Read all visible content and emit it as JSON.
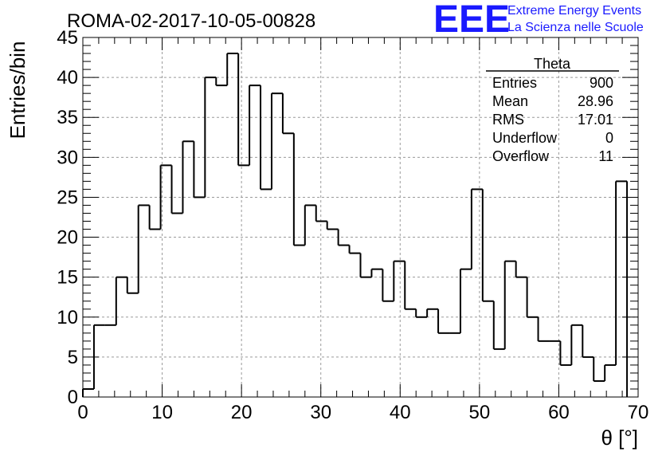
{
  "chart_data": {
    "type": "bar",
    "title": "ROMA-02-2017-10-05-00828",
    "xlabel": "θ [°]",
    "ylabel": "Entries/bin",
    "xlim": [
      0,
      70
    ],
    "ylim": [
      0,
      45
    ],
    "x_ticks": [
      0,
      10,
      20,
      30,
      40,
      50,
      60,
      70
    ],
    "y_ticks": [
      0,
      5,
      10,
      15,
      20,
      25,
      30,
      35,
      40,
      45
    ],
    "bin_width": 1.4,
    "bin_edges_start": 0,
    "values": [
      1,
      9,
      9,
      15,
      13,
      24,
      21,
      29,
      23,
      32,
      25,
      40,
      39,
      43,
      29,
      39,
      26,
      38,
      33,
      19,
      24,
      22,
      21,
      19,
      18,
      15,
      16,
      12,
      17,
      11,
      10,
      11,
      8,
      8,
      16,
      26,
      12,
      6,
      17,
      15,
      10,
      7,
      7,
      4,
      9,
      5,
      2,
      4,
      27
    ],
    "grid": true
  },
  "stats": {
    "name": "Theta",
    "rows": [
      {
        "label": "Entries",
        "value": "900"
      },
      {
        "label": "Mean",
        "value": "28.96"
      },
      {
        "label": "RMS",
        "value": "17.01"
      },
      {
        "label": "Underflow",
        "value": "0"
      },
      {
        "label": "Overflow",
        "value": "11"
      }
    ]
  },
  "logo": {
    "mark": "EEE",
    "line1": "Extreme Energy Events",
    "line2": "La Scienza nelle Scuole",
    "color": "#1a1aff"
  }
}
